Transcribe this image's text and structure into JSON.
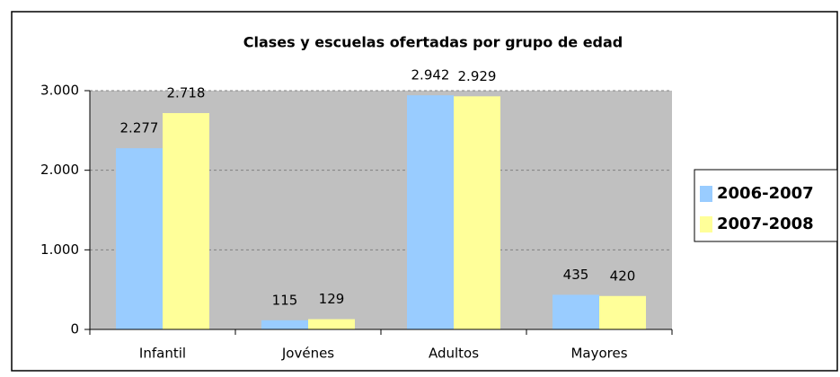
{
  "chart_data": {
    "type": "bar",
    "title": "Clases y escuelas ofertadas por grupo de edad",
    "categories": [
      "Infantil",
      "Jovénes",
      "Adultos",
      "Mayores"
    ],
    "series": [
      {
        "name": "2006-2007",
        "color": "#99ccff",
        "values": [
          2277,
          115,
          2942,
          435
        ],
        "value_labels": [
          "2.277",
          "115",
          "2.942",
          "435"
        ]
      },
      {
        "name": "2007-2008",
        "color": "#ffff99",
        "values": [
          2718,
          129,
          2929,
          420
        ],
        "value_labels": [
          "2.718",
          "129",
          "2.929",
          "420"
        ]
      }
    ],
    "ylim": [
      0,
      3000
    ],
    "yticks": [
      0,
      {
        "value": 1000,
        "label": "1.000"
      },
      {
        "value": 2000,
        "label": "2.000"
      },
      {
        "value": 3000,
        "label": "3.000"
      }
    ],
    "grid": true,
    "legend": "right"
  }
}
